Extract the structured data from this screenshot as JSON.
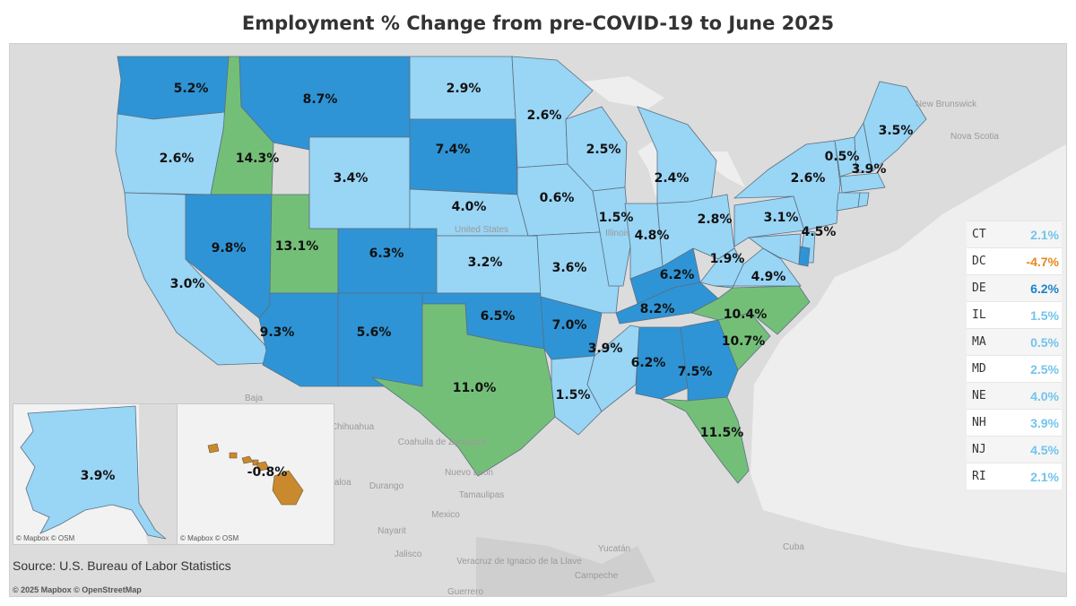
{
  "title": "Employment % Change from pre-COVID-19 to June 2025",
  "source": "Source: U.S. Bureau of Labor Statistics",
  "credit": "© 2025 Mapbox © OpenStreetMap",
  "inset_credit": "© Mapbox © OSM",
  "colors": {
    "water": "#eeeeee",
    "land": "#dcdcdc",
    "light": "#99d5f5",
    "medium": "#2e94d6",
    "green": "#74bf78",
    "negative": "#c98a2e",
    "legend_light": "#72c4ec",
    "legend_dark": "#1a84c8",
    "legend_negative": "#e38a21"
  },
  "geo_labels": [
    "New Brunswick",
    "Nova Scotia",
    "United States",
    "Illinois",
    "Baja",
    "Chihuahua",
    "Coahuila de Zaragoza",
    "Nuevo León",
    "Sinaloa",
    "Durango",
    "Tamaulipas",
    "Mexico",
    "Nayarit",
    "Jalisco",
    "Guerrero",
    "Veracruz de Ignacio de la Llave",
    "Yucatán",
    "Campeche",
    "Cuba"
  ],
  "states": [
    {
      "name": "WA",
      "value": "5.2%",
      "color": "medium"
    },
    {
      "name": "OR",
      "value": "2.6%",
      "color": "light"
    },
    {
      "name": "CA",
      "value": "3.0%",
      "color": "light"
    },
    {
      "name": "ID",
      "value": "14.3%",
      "color": "green"
    },
    {
      "name": "NV",
      "value": "9.8%",
      "color": "medium"
    },
    {
      "name": "UT",
      "value": "13.1%",
      "color": "green"
    },
    {
      "name": "AZ",
      "value": "9.3%",
      "color": "medium"
    },
    {
      "name": "MT",
      "value": "8.7%",
      "color": "medium"
    },
    {
      "name": "WY",
      "value": "3.4%",
      "color": "light"
    },
    {
      "name": "CO",
      "value": "6.3%",
      "color": "medium"
    },
    {
      "name": "NM",
      "value": "5.6%",
      "color": "medium"
    },
    {
      "name": "ND",
      "value": "2.9%",
      "color": "light"
    },
    {
      "name": "SD",
      "value": "7.4%",
      "color": "medium"
    },
    {
      "name": "NE",
      "value": "4.0%",
      "color": "light"
    },
    {
      "name": "KS",
      "value": "3.2%",
      "color": "light"
    },
    {
      "name": "OK",
      "value": "6.5%",
      "color": "medium"
    },
    {
      "name": "TX",
      "value": "11.0%",
      "color": "green"
    },
    {
      "name": "MN",
      "value": "2.6%",
      "color": "light"
    },
    {
      "name": "IA",
      "value": "0.6%",
      "color": "light"
    },
    {
      "name": "MO",
      "value": "3.6%",
      "color": "light"
    },
    {
      "name": "AR",
      "value": "7.0%",
      "color": "medium"
    },
    {
      "name": "LA",
      "value": "1.5%",
      "color": "light"
    },
    {
      "name": "WI",
      "value": "2.5%",
      "color": "light"
    },
    {
      "name": "IL",
      "value": "1.5%",
      "color": "light"
    },
    {
      "name": "MS",
      "value": "3.9%",
      "color": "light"
    },
    {
      "name": "MI",
      "value": "2.4%",
      "color": "light"
    },
    {
      "name": "IN",
      "value": "4.8%",
      "color": "light"
    },
    {
      "name": "KY",
      "value": "6.2%",
      "color": "medium"
    },
    {
      "name": "TN",
      "value": "8.2%",
      "color": "medium"
    },
    {
      "name": "AL",
      "value": "6.2%",
      "color": "medium"
    },
    {
      "name": "OH",
      "value": "2.8%",
      "color": "light"
    },
    {
      "name": "WV",
      "value": "1.9%",
      "color": "light"
    },
    {
      "name": "GA",
      "value": "7.5%",
      "color": "medium"
    },
    {
      "name": "FL",
      "value": "11.5%",
      "color": "green"
    },
    {
      "name": "SC",
      "value": "10.7%",
      "color": "green"
    },
    {
      "name": "NC",
      "value": "10.4%",
      "color": "green"
    },
    {
      "name": "VA",
      "value": "4.9%",
      "color": "light"
    },
    {
      "name": "PA",
      "value": "3.1%",
      "color": "light"
    },
    {
      "name": "NY",
      "value": "2.6%",
      "color": "light"
    },
    {
      "name": "NJ",
      "value": "4.5%",
      "color": "light"
    },
    {
      "name": "DE",
      "value": "",
      "color": "medium"
    },
    {
      "name": "MD",
      "value": "",
      "color": "light"
    },
    {
      "name": "VT",
      "value": "0.5%",
      "color": "light"
    },
    {
      "name": "NH",
      "value": "3.9%",
      "color": "light"
    },
    {
      "name": "ME",
      "value": "3.5%",
      "color": "light"
    },
    {
      "name": "MA",
      "value": "",
      "color": "light"
    },
    {
      "name": "CT",
      "value": "",
      "color": "light"
    },
    {
      "name": "RI",
      "value": "",
      "color": "light"
    },
    {
      "name": "AK",
      "value": "3.9%",
      "color": "light"
    },
    {
      "name": "HI",
      "value": "-0.8%",
      "color": "negative"
    }
  ],
  "legend": [
    {
      "state": "CT",
      "value": "2.1%",
      "color": "legend_light"
    },
    {
      "state": "DC",
      "value": "-4.7%",
      "color": "legend_negative"
    },
    {
      "state": "DE",
      "value": "6.2%",
      "color": "legend_dark"
    },
    {
      "state": "IL",
      "value": "1.5%",
      "color": "legend_light"
    },
    {
      "state": "MA",
      "value": "0.5%",
      "color": "legend_light"
    },
    {
      "state": "MD",
      "value": "2.5%",
      "color": "legend_light"
    },
    {
      "state": "NE",
      "value": "4.0%",
      "color": "legend_light"
    },
    {
      "state": "NH",
      "value": "3.9%",
      "color": "legend_light"
    },
    {
      "state": "NJ",
      "value": "4.5%",
      "color": "legend_light"
    },
    {
      "state": "RI",
      "value": "2.1%",
      "color": "legend_light"
    }
  ]
}
